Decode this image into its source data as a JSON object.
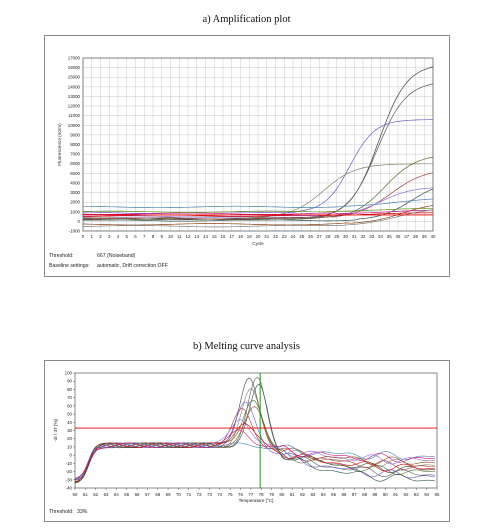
{
  "captions": {
    "a": "a)  Amplification plot",
    "b": "b)  Melting curve analysis"
  },
  "colors": {
    "threshold_line": "#e00000",
    "selection_line": "#0a8a0a",
    "grid": "#c8c8c8",
    "curves": [
      "#404040",
      "#6a5acd",
      "#8b7d6b",
      "#a04040",
      "#556b2f",
      "#7f7f7f",
      "#9370db",
      "#b06060",
      "#2f4f4f",
      "#8b4513",
      "#6b8e23",
      "#4682b4",
      "#c71585",
      "#5f5f9f"
    ]
  },
  "chart_data": [
    {
      "type": "line",
      "title": "a)  Amplification plot",
      "xlabel": "Cycle",
      "ylabel": "Fluorescence (norm)",
      "xlim": [
        0,
        40
      ],
      "ylim": [
        -1000,
        17000
      ],
      "x_ticks": [
        "0",
        "1",
        "2",
        "3",
        "4",
        "5",
        "6",
        "7",
        "8",
        "9",
        "10",
        "11",
        "12",
        "13",
        "14",
        "15",
        "16",
        "17",
        "18",
        "19",
        "20",
        "21",
        "22",
        "23",
        "24",
        "25",
        "26",
        "27",
        "28",
        "29",
        "30",
        "31",
        "32",
        "33",
        "34",
        "35",
        "36",
        "37",
        "38",
        "39",
        "40"
      ],
      "y_ticks": [
        "17000",
        "16000",
        "15000",
        "14000",
        "13000",
        "12000",
        "11000",
        "10000",
        "9000",
        "8000",
        "7000",
        "6000",
        "5000",
        "4000",
        "3000",
        "2000",
        "1000",
        "0",
        "-1000"
      ],
      "grid": true,
      "threshold": 667,
      "series": [
        {
          "color": "#404040",
          "baseline": 300,
          "plateau": 16400,
          "midpoint": 33.8,
          "slope": 0.62
        },
        {
          "color": "#5a5a5a",
          "baseline": 250,
          "plateau": 14600,
          "midpoint": 33.6,
          "slope": 0.6
        },
        {
          "color": "#6a5acd",
          "baseline": 900,
          "plateau": 10600,
          "midpoint": 30.5,
          "slope": 0.7
        },
        {
          "color": "#8b7d6b",
          "baseline": 400,
          "plateau": 6000,
          "midpoint": 27.5,
          "slope": 0.55
        },
        {
          "color": "#556b2f",
          "baseline": 200,
          "plateau": 7000,
          "midpoint": 34.5,
          "slope": 0.55
        },
        {
          "color": "#a04040",
          "baseline": 300,
          "plateau": 5500,
          "midpoint": 35.2,
          "slope": 0.5
        },
        {
          "color": "#9370db",
          "baseline": 500,
          "plateau": 3600,
          "midpoint": 34.0,
          "slope": 0.55
        },
        {
          "color": "#2f4f4f",
          "baseline": 100,
          "plateau": 4200,
          "midpoint": 37.5,
          "slope": 0.55
        },
        {
          "color": "#4682b4",
          "baseline": 1500,
          "plateau": 2500,
          "midpoint": 36.0,
          "slope": 0.4
        },
        {
          "color": "#8b4513",
          "baseline": -300,
          "plateau": 2000,
          "midpoint": 36.5,
          "slope": 0.5
        },
        {
          "color": "#c71585",
          "baseline": 800,
          "plateau": 1200,
          "midpoint": 35.0,
          "slope": 0.5
        },
        {
          "color": "#e00000",
          "baseline": 600,
          "plateau": 900,
          "midpoint": 33.0,
          "slope": 0.5
        },
        {
          "color": "#7f7f7f",
          "baseline": -500,
          "plateau": 1500,
          "midpoint": 36.0,
          "slope": 0.45
        },
        {
          "color": "#6b8e23",
          "baseline": 1000,
          "plateau": 1400,
          "midpoint": 34.0,
          "slope": 0.4
        }
      ],
      "footer": [
        {
          "label": "Threshold:",
          "value": "667 (Noiseband)"
        },
        {
          "label": "Baseline settings:",
          "value": "automatic, Drift correction OFF"
        }
      ]
    },
    {
      "type": "line",
      "title": "b)  Melting curve analysis",
      "xlabel": "Temperature [°C]",
      "ylabel": "-dI / dT [%]",
      "xlim": [
        60,
        95
      ],
      "ylim": [
        -40,
        100
      ],
      "x_ticks": [
        "60",
        "61",
        "62",
        "63",
        "64",
        "65",
        "66",
        "67",
        "68",
        "69",
        "70",
        "71",
        "72",
        "73",
        "74",
        "75",
        "76",
        "77",
        "78",
        "79",
        "80",
        "81",
        "82",
        "83",
        "84",
        "85",
        "86",
        "87",
        "88",
        "89",
        "90",
        "91",
        "92",
        "93",
        "94",
        "95"
      ],
      "y_ticks": [
        "100",
        "90",
        "80",
        "70",
        "60",
        "50",
        "40",
        "30",
        "20",
        "10",
        "0",
        "-10",
        "-20",
        "-30",
        "-40"
      ],
      "grid": false,
      "threshold_percent": 33,
      "selection_temperature": 77.9,
      "series": [
        {
          "color": "#404040",
          "peak": 96,
          "peak_t": 76.8,
          "tail": -22
        },
        {
          "color": "#5a5a5a",
          "peak": 92,
          "peak_t": 77.6,
          "tail": -28
        },
        {
          "color": "#8b7d6b",
          "peak": 78,
          "peak_t": 77.0,
          "tail": -15
        },
        {
          "color": "#6a5acd",
          "peak": 62,
          "peak_t": 76.5,
          "tail": -30
        },
        {
          "color": "#a04040",
          "peak": 55,
          "peak_t": 76.2,
          "tail": -18
        },
        {
          "color": "#556b2f",
          "peak": 70,
          "peak_t": 77.2,
          "tail": -25
        },
        {
          "color": "#9370db",
          "peak": 46,
          "peak_t": 76.0,
          "tail": -10
        },
        {
          "color": "#e00000",
          "peak": 40,
          "peak_t": 76.3,
          "tail": -20
        },
        {
          "color": "#2f4f4f",
          "peak": 84,
          "peak_t": 77.8,
          "tail": -35
        },
        {
          "color": "#8b4513",
          "peak": 58,
          "peak_t": 77.4,
          "tail": -12
        },
        {
          "color": "#4682b4",
          "peak": 12,
          "peak_t": 74.0,
          "tail": -5
        },
        {
          "color": "#c71585",
          "peak": 30,
          "peak_t": 76.0,
          "tail": -8
        }
      ],
      "footer": [
        {
          "label": "Threshold:",
          "value": "33%"
        }
      ]
    }
  ]
}
